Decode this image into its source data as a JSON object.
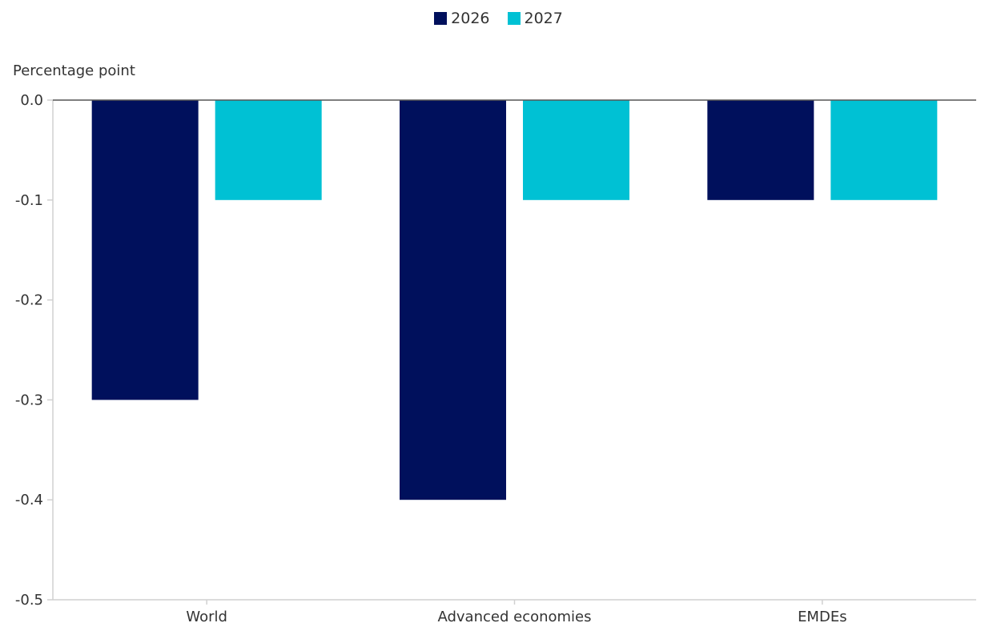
{
  "chart_data": {
    "type": "bar",
    "title": "",
    "xlabel": "",
    "ylabel": "Percentage point",
    "categories": [
      "World",
      "Advanced economies",
      "EMDEs"
    ],
    "series": [
      {
        "name": "2026",
        "color": "#00105c",
        "values": [
          -0.3,
          -0.4,
          -0.1
        ]
      },
      {
        "name": "2027",
        "color": "#00c1d4",
        "values": [
          -0.1,
          -0.1,
          -0.1
        ]
      }
    ],
    "ylim": [
      -0.5,
      0.0
    ],
    "yticks": [
      "0.0",
      "-0.1",
      "-0.2",
      "-0.3",
      "-0.4",
      "-0.5"
    ],
    "grid": false,
    "legend_position": "top-center"
  },
  "legend": {
    "items": [
      {
        "label": "2026",
        "color": "#00105c"
      },
      {
        "label": "2027",
        "color": "#00c1d4"
      }
    ]
  },
  "axis": {
    "ylabel": "Percentage point"
  }
}
